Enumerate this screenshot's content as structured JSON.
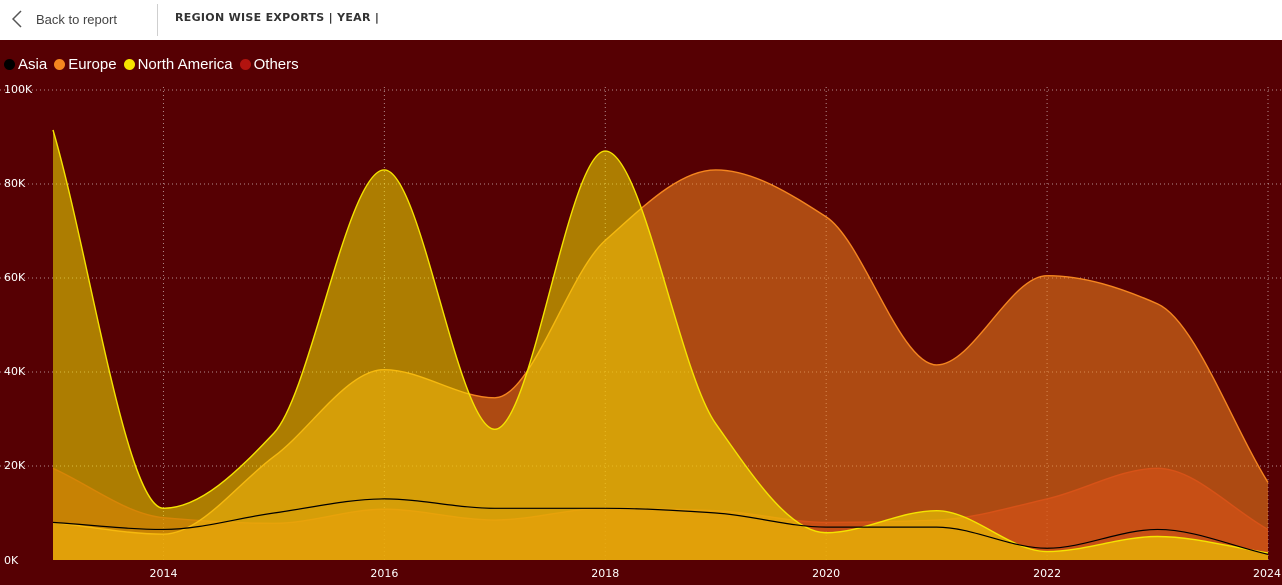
{
  "header": {
    "back_label": "Back to report",
    "title": "REGION WISE EXPORTS | YEAR |"
  },
  "colors": {
    "Asia": "#000000",
    "Europe": "#f5861f",
    "North America": "#f5e400",
    "Others": "#b2130f",
    "background": "#560003"
  },
  "chart_data": {
    "type": "area",
    "title": "",
    "xlabel": "",
    "ylabel": "",
    "x": [
      2013,
      2014,
      2015,
      2016,
      2017,
      2018,
      2019,
      2020,
      2021,
      2022,
      2023,
      2024
    ],
    "xticks": [
      "2014",
      "2016",
      "2018",
      "2020",
      "2022",
      "2024"
    ],
    "yticks": [
      "0K",
      "20K",
      "40K",
      "60K",
      "80K",
      "100K"
    ],
    "ylim": [
      0,
      100000
    ],
    "xlim": [
      2013,
      2024
    ],
    "grid": true,
    "legend_position": "top-left",
    "series": [
      {
        "name": "Others",
        "values": [
          19500,
          9000,
          7800,
          10800,
          8500,
          11000,
          10500,
          8000,
          8500,
          13000,
          19500,
          6500
        ]
      },
      {
        "name": "Europe",
        "values": [
          8000,
          5500,
          22000,
          40500,
          34500,
          68000,
          83000,
          73000,
          41500,
          60500,
          54500,
          16500
        ]
      },
      {
        "name": "North America",
        "values": [
          91500,
          11000,
          27000,
          83000,
          27800,
          87000,
          29000,
          5800,
          10500,
          1800,
          5000,
          1500
        ]
      },
      {
        "name": "Asia",
        "values": [
          8000,
          6500,
          10000,
          13000,
          11000,
          11000,
          10000,
          7000,
          7000,
          2500,
          6500,
          1200
        ]
      }
    ]
  }
}
